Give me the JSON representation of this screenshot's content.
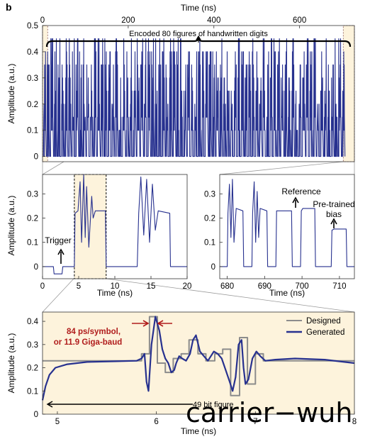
{
  "figure": {
    "panel_label": "b",
    "watermark": "carrier−wuh"
  },
  "colors": {
    "generated": "#27318f",
    "designed": "#8c8c8c",
    "highlight_fill": "#fdf3dc",
    "red_annotation": "#b01c1c"
  },
  "chart_data": [
    {
      "id": "top",
      "type": "line",
      "title": "",
      "xlabel": "Time (ns)",
      "ylabel": "Amplitude (a.u.)",
      "xlim": [
        0,
        728
      ],
      "ylim": [
        -0.02,
        0.5
      ],
      "xticks": [
        0,
        200,
        400,
        600
      ],
      "yticks": [
        0,
        0.1,
        0.2,
        0.3,
        0.4,
        0.5
      ],
      "x_axis_position": "top",
      "annotation": "Encoded 80 figures of handwritten digits",
      "highlight_ranges": [
        [
          0,
          12
        ],
        [
          702,
          728
        ]
      ],
      "series": [
        {
          "style": "dense pulses",
          "levels": [
            0,
            0.1,
            0.15,
            0.2,
            0.25,
            0.3,
            0.35,
            0.4,
            0.45
          ],
          "peak_period_ns": 8.4,
          "first_pulse_ns": 2,
          "last_pulse_ns": 705
        }
      ]
    },
    {
      "id": "mid-left",
      "type": "line",
      "xlabel": "Time (ns)",
      "ylabel": "Amplitude (a.u.)",
      "xlim": [
        0,
        20
      ],
      "ylim": [
        -0.05,
        0.38
      ],
      "xticks": [
        0,
        5,
        10,
        15,
        20
      ],
      "yticks": [
        0,
        0.1,
        0.2,
        0.3
      ],
      "highlight_range": [
        4.4,
        8.8
      ],
      "annotations": [
        "Trigger"
      ],
      "series": [
        {
          "x": [
            0,
            1.5,
            1.6,
            2.7,
            2.8,
            4.4,
            4.5,
            4.9,
            5.2,
            5.4,
            5.7,
            5.9,
            6.1,
            6.4,
            6.8,
            7.0,
            7.3,
            8.7,
            8.8,
            13.1,
            13.3,
            13.6,
            14.0,
            14.4,
            14.8,
            15.2,
            15.6,
            16.0,
            17.6,
            17.7,
            20
          ],
          "y": [
            0,
            0,
            -0.03,
            -0.03,
            0,
            0,
            0.22,
            0.23,
            0.35,
            0.1,
            0.38,
            0.12,
            0.33,
            0.08,
            0.29,
            0.2,
            0.23,
            0.23,
            0,
            0,
            0.22,
            0.37,
            0.13,
            0.36,
            0.1,
            0.34,
            0.15,
            0.23,
            0.22,
            0,
            0
          ]
        }
      ]
    },
    {
      "id": "mid-right",
      "type": "line",
      "xlabel": "Time (ns)",
      "ylabel": "",
      "xlim": [
        678,
        714
      ],
      "ylim": [
        -0.05,
        0.38
      ],
      "xticks": [
        680,
        690,
        700,
        710
      ],
      "yticks": [
        0,
        0.1,
        0.2,
        0.3
      ],
      "annotations": [
        "Reference",
        "Pre-trained bias"
      ],
      "series": [
        {
          "x": [
            678,
            680,
            680.2,
            680.6,
            681.0,
            681.4,
            681.8,
            682.4,
            684.2,
            684.4,
            686.6,
            686.8,
            687.2,
            687.6,
            688.0,
            688.4,
            688.8,
            690.6,
            690.8,
            693.0,
            693.2,
            693.6,
            697.2,
            697.4,
            699.6,
            699.8,
            700.2,
            703.4,
            703.6,
            707.8,
            708.0,
            708.6,
            711.8,
            712.0,
            714
          ],
          "y": [
            0,
            0,
            0.22,
            0.34,
            0.12,
            0.36,
            0.1,
            0.24,
            0.23,
            0,
            0,
            0.22,
            0.35,
            0.1,
            0.31,
            0.12,
            0.24,
            0.23,
            0,
            0,
            0.23,
            0.23,
            0.23,
            0,
            0,
            0.23,
            0.24,
            0.24,
            0,
            0,
            0.15,
            0.155,
            0.155,
            0,
            0
          ]
        }
      ]
    },
    {
      "id": "bottom",
      "type": "line",
      "xlabel": "Time (ns)",
      "ylabel": "Amplitude (a.u.)",
      "xlim": [
        4.85,
        8.0
      ],
      "ylim": [
        0,
        0.44
      ],
      "xticks": [
        5,
        6,
        7,
        8
      ],
      "yticks": [
        0,
        0.1,
        0.2,
        0.3,
        0.4
      ],
      "annotations": [
        "84 ps/symbol,",
        "or 11.9 Giga-baud",
        "49 bit figure"
      ],
      "legend_position": "top-right",
      "series": [
        {
          "name": "Designed",
          "x": [
            4.85,
            5.85,
            5.85,
            5.93,
            5.93,
            6.01,
            6.01,
            6.09,
            6.09,
            6.17,
            6.17,
            6.25,
            6.25,
            6.33,
            6.33,
            6.42,
            6.42,
            6.5,
            6.5,
            6.59,
            6.59,
            6.67,
            6.67,
            6.75,
            6.75,
            6.84,
            6.84,
            6.92,
            6.92,
            7.0,
            7.0,
            7.08,
            7.08,
            8.0
          ],
          "y": [
            0.23,
            0.23,
            0.26,
            0.26,
            0.42,
            0.42,
            0.22,
            0.22,
            0.18,
            0.18,
            0.24,
            0.24,
            0.26,
            0.26,
            0.32,
            0.32,
            0.26,
            0.26,
            0.23,
            0.23,
            0.26,
            0.26,
            0.28,
            0.28,
            0.08,
            0.08,
            0.33,
            0.33,
            0.13,
            0.13,
            0.26,
            0.26,
            0.23,
            0.23
          ]
        },
        {
          "name": "Generated",
          "x": [
            4.85,
            4.88,
            4.92,
            4.98,
            5.1,
            5.3,
            5.6,
            5.8,
            5.85,
            5.88,
            5.9,
            5.92,
            5.95,
            5.99,
            6.03,
            6.06,
            6.09,
            6.12,
            6.15,
            6.18,
            6.2,
            6.23,
            6.26,
            6.3,
            6.34,
            6.37,
            6.4,
            6.44,
            6.48,
            6.52,
            6.55,
            6.58,
            6.62,
            6.66,
            6.7,
            6.74,
            6.77,
            6.8,
            6.83,
            6.86,
            6.88,
            6.9,
            6.93,
            6.97,
            7.01,
            7.05,
            7.1,
            7.2,
            7.4,
            7.7,
            8.0
          ],
          "y": [
            0.06,
            0.12,
            0.17,
            0.2,
            0.215,
            0.225,
            0.228,
            0.23,
            0.24,
            0.26,
            0.14,
            0.1,
            0.3,
            0.42,
            0.36,
            0.28,
            0.24,
            0.22,
            0.18,
            0.19,
            0.22,
            0.25,
            0.24,
            0.23,
            0.26,
            0.32,
            0.34,
            0.27,
            0.25,
            0.23,
            0.25,
            0.27,
            0.26,
            0.24,
            0.19,
            0.14,
            0.1,
            0.16,
            0.3,
            0.32,
            0.2,
            0.13,
            0.15,
            0.24,
            0.27,
            0.25,
            0.23,
            0.235,
            0.24,
            0.235,
            0.22
          ]
        }
      ]
    }
  ]
}
